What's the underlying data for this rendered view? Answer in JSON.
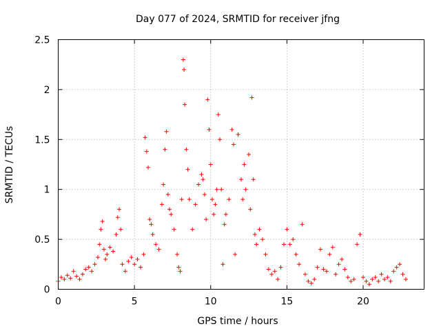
{
  "chart_data": {
    "type": "scatter",
    "title": "Day 077 of 2024, SRMTID for receiver jfng",
    "xlabel": "GPS time / hours",
    "ylabel": "SRMTID / TECUs",
    "xlim": [
      0,
      24
    ],
    "ylim": [
      0,
      2.5
    ],
    "xticks": [
      0,
      5,
      10,
      15,
      20
    ],
    "xtick_labels": [
      "0",
      "5",
      "10",
      "15",
      "20"
    ],
    "yticks": [
      0,
      0.5,
      1,
      1.5,
      2,
      2.5
    ],
    "ytick_labels": [
      "0",
      "0.5",
      "1",
      "1.5",
      "2",
      "2.5"
    ],
    "grid": true,
    "marker": "plus",
    "color": "#ff0000",
    "series": [
      {
        "name": "SRMTID",
        "points": [
          [
            0.0,
            0.08
          ],
          [
            0.2,
            0.12
          ],
          [
            0.4,
            0.1
          ],
          [
            0.6,
            0.14
          ],
          [
            0.8,
            0.11
          ],
          [
            1.0,
            0.18
          ],
          [
            1.2,
            0.13
          ],
          [
            1.4,
            0.1
          ],
          [
            1.6,
            0.15
          ],
          [
            1.8,
            0.2
          ],
          [
            2.0,
            0.22
          ],
          [
            2.2,
            0.18
          ],
          [
            2.4,
            0.25
          ],
          [
            2.6,
            0.32
          ],
          [
            2.7,
            0.45
          ],
          [
            2.8,
            0.6
          ],
          [
            2.9,
            0.68
          ],
          [
            3.0,
            0.4
          ],
          [
            3.1,
            0.3
          ],
          [
            3.2,
            0.35
          ],
          [
            3.4,
            0.42
          ],
          [
            3.6,
            0.38
          ],
          [
            3.8,
            0.55
          ],
          [
            3.9,
            0.72
          ],
          [
            4.0,
            0.8
          ],
          [
            4.1,
            0.6
          ],
          [
            4.2,
            0.25
          ],
          [
            4.4,
            0.18
          ],
          [
            4.6,
            0.28
          ],
          [
            4.8,
            0.32
          ],
          [
            5.0,
            0.25
          ],
          [
            5.2,
            0.3
          ],
          [
            5.4,
            0.22
          ],
          [
            5.6,
            0.35
          ],
          [
            5.7,
            1.52
          ],
          [
            5.8,
            1.38
          ],
          [
            5.9,
            1.22
          ],
          [
            6.0,
            0.7
          ],
          [
            6.1,
            0.65
          ],
          [
            6.2,
            0.55
          ],
          [
            6.4,
            0.45
          ],
          [
            6.6,
            0.4
          ],
          [
            6.8,
            0.85
          ],
          [
            6.9,
            1.05
          ],
          [
            7.0,
            1.4
          ],
          [
            7.1,
            1.58
          ],
          [
            7.2,
            0.95
          ],
          [
            7.3,
            0.8
          ],
          [
            7.4,
            0.75
          ],
          [
            7.6,
            0.6
          ],
          [
            7.8,
            0.35
          ],
          [
            7.9,
            0.22
          ],
          [
            8.0,
            0.18
          ],
          [
            8.1,
            0.9
          ],
          [
            8.2,
            2.3
          ],
          [
            8.25,
            2.2
          ],
          [
            8.3,
            1.85
          ],
          [
            8.4,
            1.4
          ],
          [
            8.5,
            1.2
          ],
          [
            8.6,
            0.9
          ],
          [
            8.8,
            0.6
          ],
          [
            9.0,
            0.85
          ],
          [
            9.2,
            1.05
          ],
          [
            9.4,
            1.15
          ],
          [
            9.5,
            1.1
          ],
          [
            9.6,
            0.95
          ],
          [
            9.7,
            0.7
          ],
          [
            9.8,
            1.9
          ],
          [
            9.9,
            1.6
          ],
          [
            10.0,
            1.25
          ],
          [
            10.1,
            0.9
          ],
          [
            10.2,
            0.75
          ],
          [
            10.3,
            0.85
          ],
          [
            10.4,
            1.0
          ],
          [
            10.5,
            1.75
          ],
          [
            10.6,
            1.5
          ],
          [
            10.7,
            1.0
          ],
          [
            10.8,
            0.25
          ],
          [
            10.9,
            0.65
          ],
          [
            11.0,
            0.75
          ],
          [
            11.2,
            0.9
          ],
          [
            11.4,
            1.6
          ],
          [
            11.5,
            1.45
          ],
          [
            11.6,
            0.35
          ],
          [
            11.8,
            1.55
          ],
          [
            12.0,
            1.1
          ],
          [
            12.1,
            0.9
          ],
          [
            12.2,
            1.25
          ],
          [
            12.3,
            1.0
          ],
          [
            12.5,
            1.35
          ],
          [
            12.6,
            0.8
          ],
          [
            12.7,
            1.92
          ],
          [
            12.8,
            1.1
          ],
          [
            12.9,
            0.55
          ],
          [
            13.0,
            0.45
          ],
          [
            13.2,
            0.6
          ],
          [
            13.4,
            0.5
          ],
          [
            13.6,
            0.35
          ],
          [
            13.8,
            0.2
          ],
          [
            14.0,
            0.15
          ],
          [
            14.2,
            0.18
          ],
          [
            14.4,
            0.1
          ],
          [
            14.6,
            0.22
          ],
          [
            14.8,
            0.45
          ],
          [
            15.0,
            0.6
          ],
          [
            15.2,
            0.45
          ],
          [
            15.4,
            0.5
          ],
          [
            15.6,
            0.35
          ],
          [
            15.8,
            0.25
          ],
          [
            16.0,
            0.65
          ],
          [
            16.2,
            0.15
          ],
          [
            16.4,
            0.08
          ],
          [
            16.6,
            0.06
          ],
          [
            16.8,
            0.1
          ],
          [
            17.0,
            0.22
          ],
          [
            17.2,
            0.4
          ],
          [
            17.4,
            0.2
          ],
          [
            17.6,
            0.18
          ],
          [
            17.8,
            0.35
          ],
          [
            18.0,
            0.42
          ],
          [
            18.2,
            0.15
          ],
          [
            18.4,
            0.25
          ],
          [
            18.6,
            0.3
          ],
          [
            18.8,
            0.2
          ],
          [
            19.0,
            0.12
          ],
          [
            19.2,
            0.08
          ],
          [
            19.4,
            0.1
          ],
          [
            19.6,
            0.45
          ],
          [
            19.8,
            0.55
          ],
          [
            20.0,
            0.12
          ],
          [
            20.2,
            0.08
          ],
          [
            20.4,
            0.05
          ],
          [
            20.6,
            0.1
          ],
          [
            20.8,
            0.12
          ],
          [
            21.0,
            0.08
          ],
          [
            21.2,
            0.15
          ],
          [
            21.4,
            0.1
          ],
          [
            21.6,
            0.12
          ],
          [
            21.8,
            0.08
          ],
          [
            22.0,
            0.18
          ],
          [
            22.2,
            0.22
          ],
          [
            22.4,
            0.25
          ],
          [
            22.6,
            0.15
          ],
          [
            22.8,
            0.1
          ]
        ]
      }
    ]
  }
}
